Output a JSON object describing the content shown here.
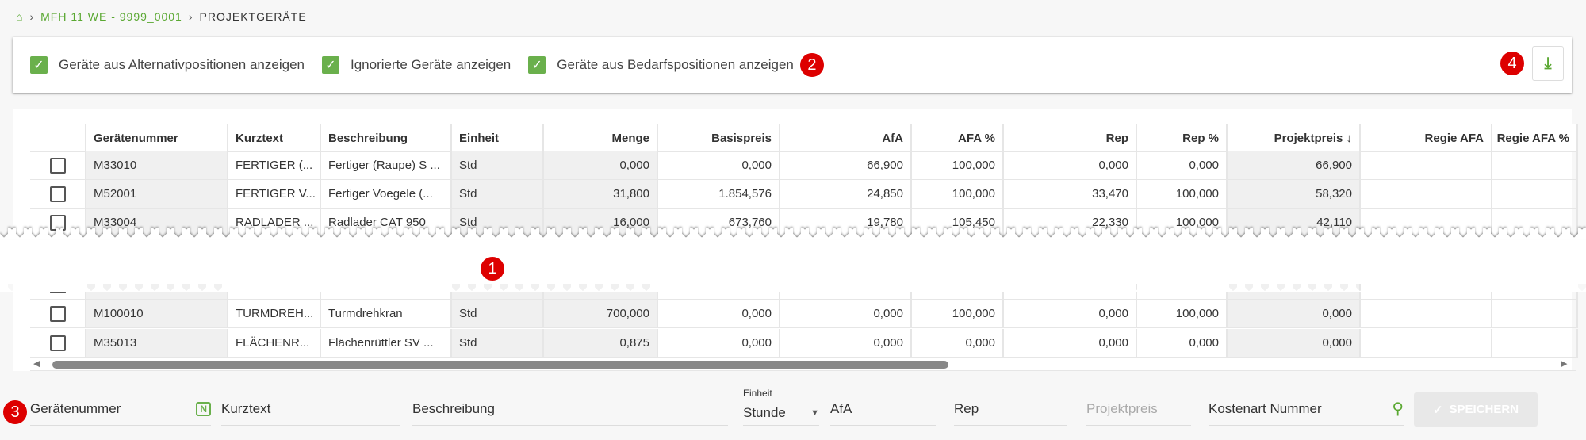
{
  "breadcrumb": {
    "home_icon": "home-icon",
    "project": "MFH 11 WE - 9999_0001",
    "current": "PROJEKTGERÄTE"
  },
  "filters": [
    {
      "label": "Geräte aus Alternativpositionen anzeigen",
      "checked": true
    },
    {
      "label": "Ignorierte Geräte anzeigen",
      "checked": true
    },
    {
      "label": "Geräte aus Bedarfspositionen anzeigen",
      "checked": true
    }
  ],
  "annotations": [
    "1",
    "2",
    "3",
    "4"
  ],
  "download_icon": "download-icon",
  "table": {
    "columns": [
      "",
      "Gerätenummer",
      "Kurztext",
      "Beschreibung",
      "Einheit",
      "Menge",
      "Basispreis",
      "AfA",
      "AFA %",
      "Rep",
      "Rep %",
      "Projektpreis ↓",
      "Regie AFA",
      "Regie AFA %"
    ],
    "rows_top": [
      [
        "M33010",
        "FERTIGER (...",
        "Fertiger (Raupe) S ...",
        "Std",
        "0,000",
        "0,000",
        "66,900",
        "100,000",
        "0,000",
        "0,000",
        "66,900",
        "",
        ""
      ],
      [
        "M52001",
        "FERTIGER V...",
        "Fertiger Voegele (...",
        "Std",
        "31,800",
        "1.854,576",
        "24,850",
        "100,000",
        "33,470",
        "100,000",
        "58,320",
        "",
        ""
      ],
      [
        "M33004",
        "RADLADER ...",
        "Radlader CAT 950",
        "Std",
        "16,000",
        "673,760",
        "19,780",
        "105,450",
        "22,330",
        "100,000",
        "42,110",
        "",
        ""
      ]
    ],
    "rows_bottom": [
      [
        "M100010",
        "TURMDREH...",
        "Turmdrehkran",
        "Std",
        "700,000",
        "0,000",
        "0,000",
        "100,000",
        "0,000",
        "100,000",
        "0,000",
        "",
        ""
      ],
      [
        "M35013",
        "FLÄCHENR...",
        "Flächenrüttler SV ...",
        "Std",
        "0,875",
        "0,000",
        "0,000",
        "0,000",
        "0,000",
        "0,000",
        "0,000",
        "",
        ""
      ]
    ]
  },
  "form": {
    "geraetenummer": "Gerätenummer",
    "n_icon": "N",
    "kurztext": "Kurztext",
    "beschreibung": "Beschreibung",
    "einheit_label": "Einheit",
    "einheit_value": "Stunde",
    "afa": "AfA",
    "rep": "Rep",
    "projektpreis": "Projektpreis",
    "kostenart": "Kostenart Nummer",
    "save": "SPEICHERN"
  }
}
